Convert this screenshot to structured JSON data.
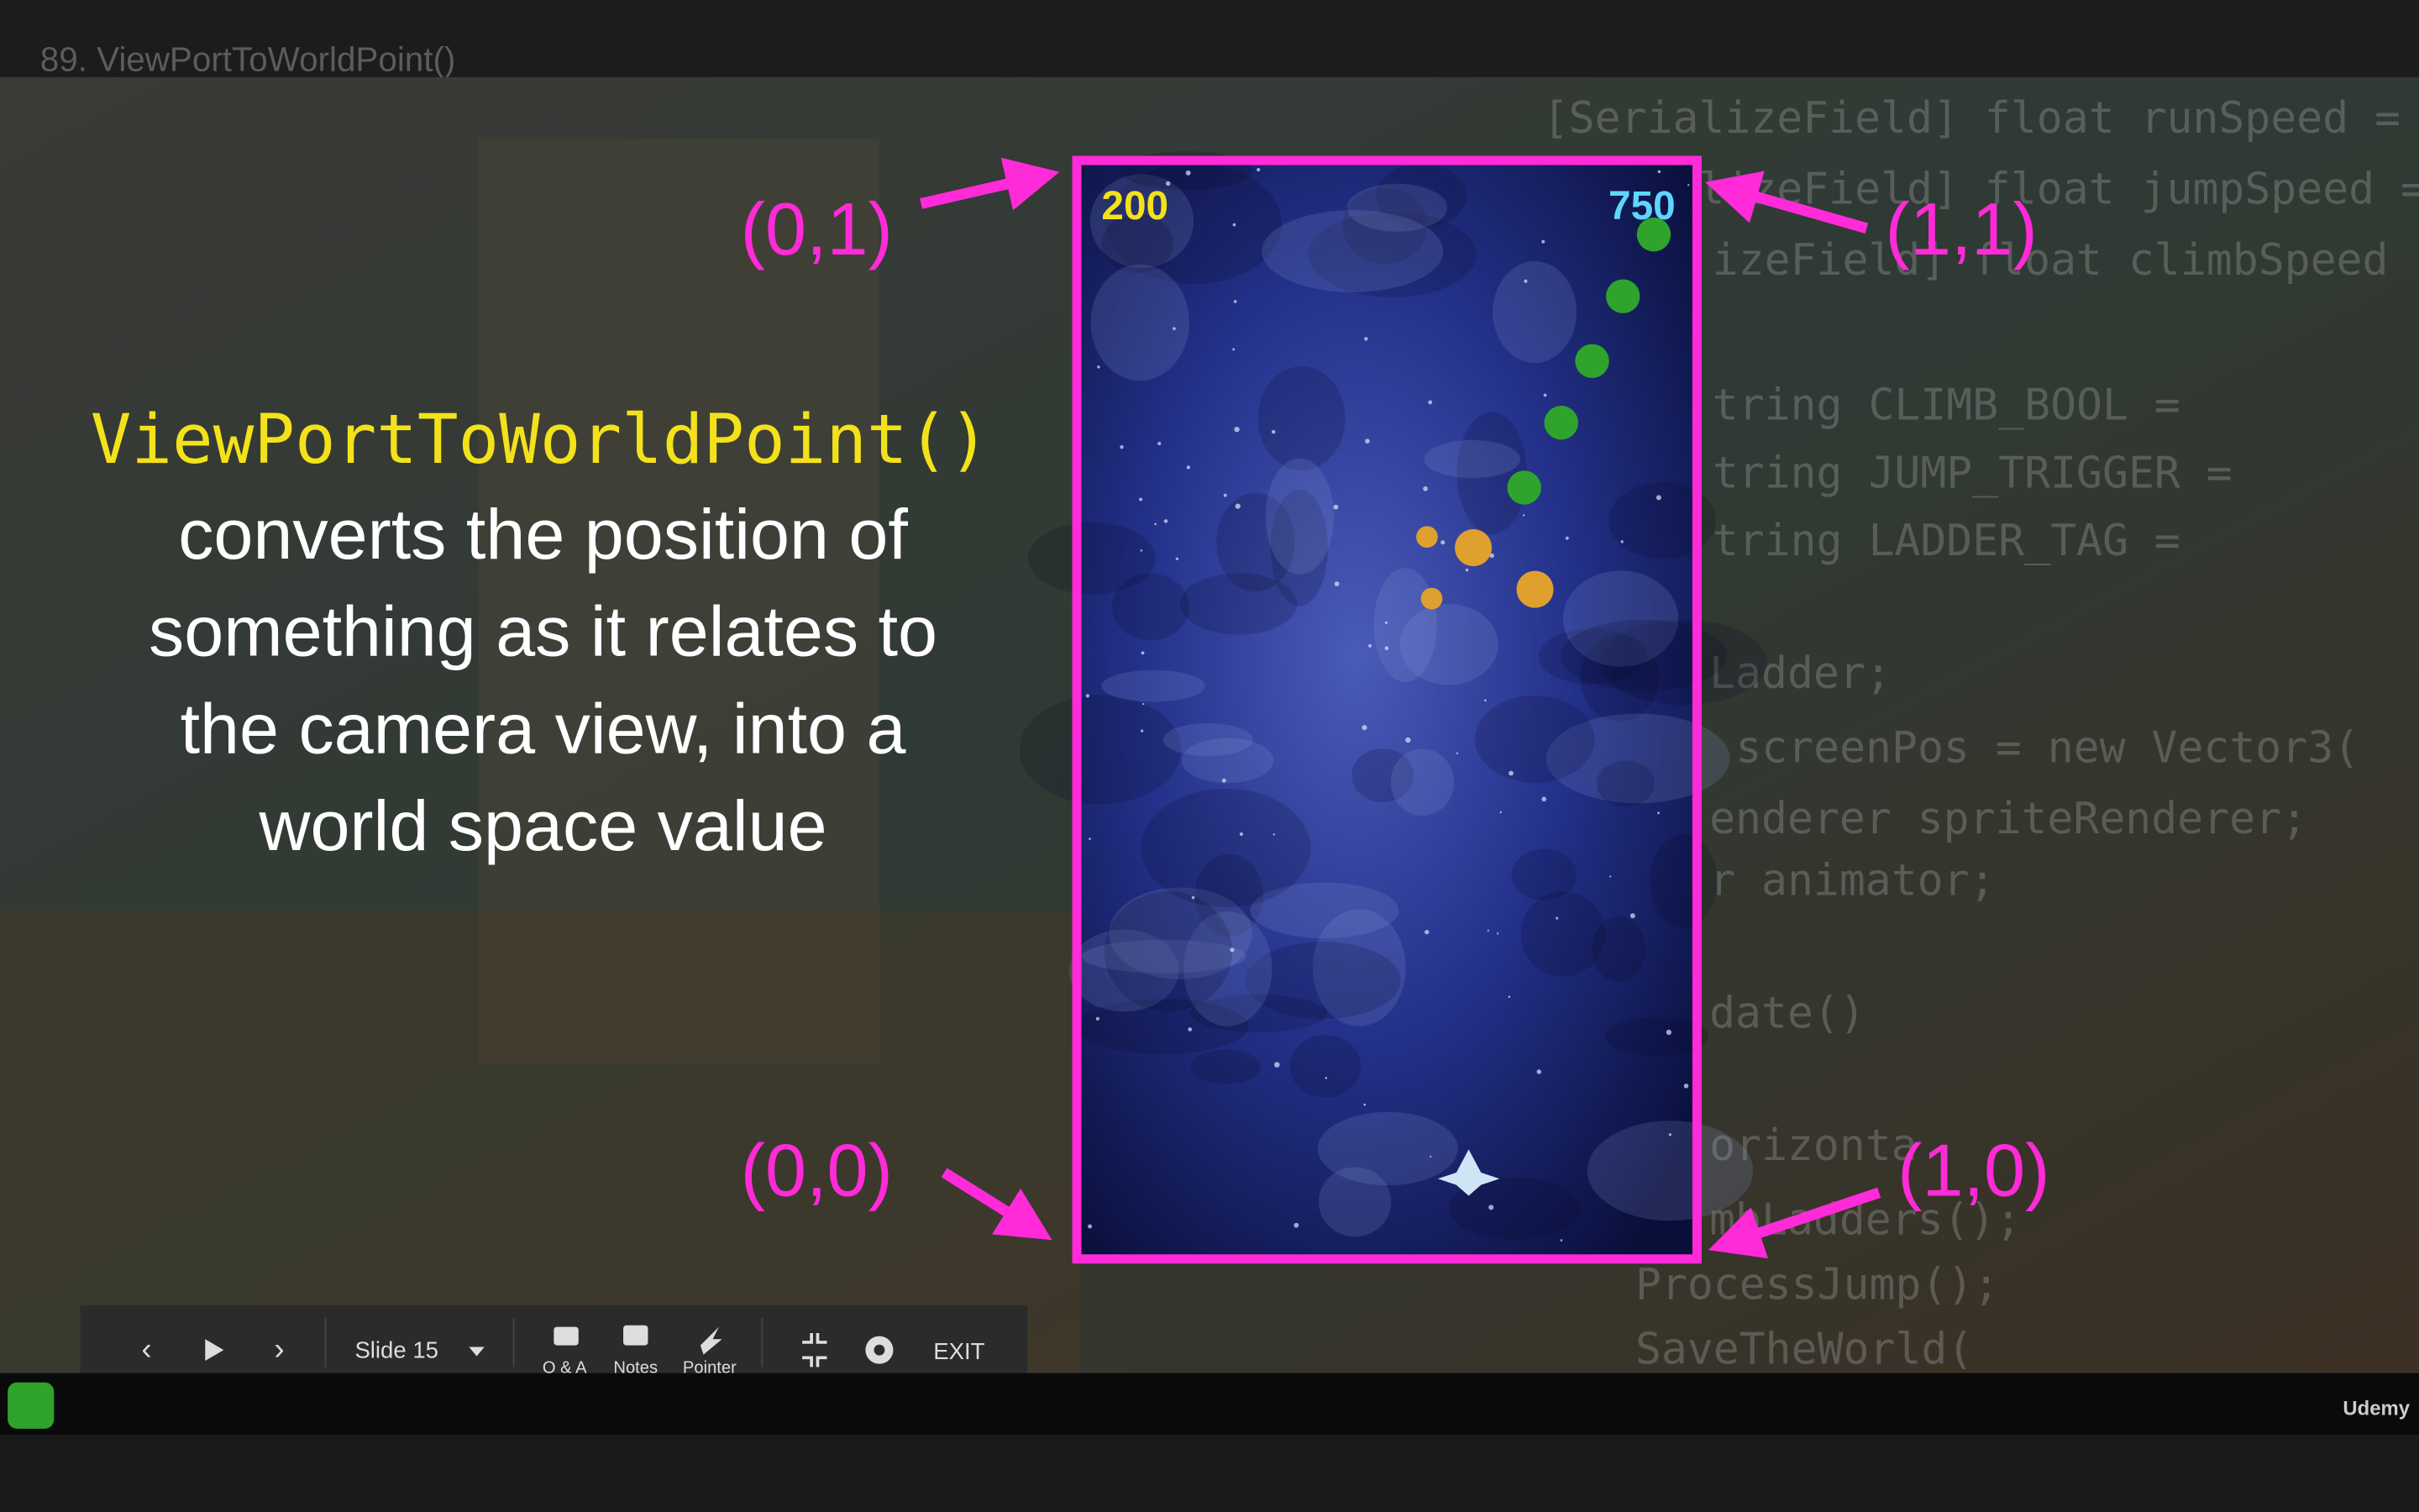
{
  "header": {
    "title": "89. ViewPortToWorldPoint()"
  },
  "slide": {
    "heading": "ViewPortToWorldPoint()",
    "body_lines": [
      "converts the position of",
      "something as it relates to",
      "the camera view, into a",
      "world space value"
    ],
    "corner_labels": {
      "top_left": "(0,1)",
      "top_right": "(1,1)",
      "bottom_left": "(0,0)",
      "bottom_right": "(1,0)"
    },
    "game": {
      "score_left": "200",
      "score_right": "750"
    },
    "code_lines": [
      "[SerializeField] float runSpeed =",
      "[SerializeField] float jumpSpeed =",
      "izeField] float climbSpeed",
      "tring CLIMB_BOOL =",
      "tring JUMP_TRIGGER =",
      "tring LADDER_TAG =",
      "Ladder;",
      "screenPos = new Vector3(",
      "enderer spriteRenderer;",
      "r animator;",
      "date()",
      "orizonta",
      "mbLadders();",
      "ProcessJump();",
      "SaveTheWorld("
    ]
  },
  "toolbar": {
    "slide": "Slide 15",
    "qa": "Q & A",
    "notes": "Notes",
    "pointer": "Pointer",
    "exit": "EXIT"
  },
  "footer": {
    "brand": "Udemy"
  }
}
